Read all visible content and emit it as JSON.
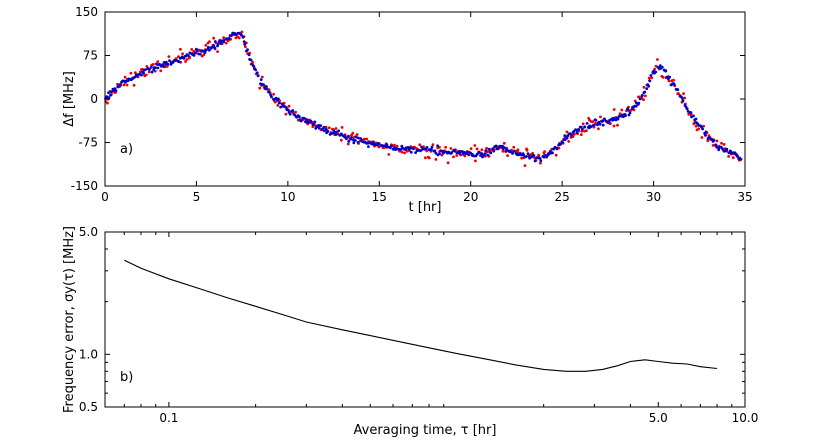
{
  "figure": {
    "background": "#ffffff",
    "frame_color": "#000000"
  },
  "chart_data": [
    {
      "type": "scatter",
      "panel_label": "a)",
      "xlabel": "t [hr]",
      "ylabel": "Δf [MHz]",
      "xscale": "linear",
      "yscale": "linear",
      "xlim": [
        0,
        35
      ],
      "ylim": [
        -150,
        150
      ],
      "xticks": {
        "values": [
          0,
          5,
          10,
          15,
          20,
          25,
          30,
          35
        ],
        "labels": [
          "0",
          "5",
          "10",
          "15",
          "20",
          "25",
          "30",
          "35"
        ]
      },
      "yticks": {
        "values": [
          -150,
          -75,
          0,
          75,
          150
        ],
        "labels": [
          "-150",
          "-75",
          "0",
          "75",
          "150"
        ]
      },
      "grid": false,
      "curve": {
        "t": [
          0,
          0.3,
          0.8,
          1.5,
          2,
          2.5,
          3,
          3.5,
          4,
          4.5,
          5,
          5.5,
          6,
          6.5,
          7,
          7.2,
          7.5,
          8,
          8.5,
          9,
          9.5,
          10,
          10.5,
          11,
          12,
          13,
          14,
          15,
          16,
          17,
          18,
          19,
          20,
          20.6,
          21.2,
          21.6,
          22,
          22.5,
          23,
          23.5,
          23.8,
          24.2,
          24.6,
          25,
          25.5,
          26,
          26.5,
          27,
          27.5,
          28,
          28.4,
          28.8,
          29.2,
          29.6,
          30,
          30.3,
          30.6,
          31,
          31.5,
          32,
          32.5,
          33,
          33.5,
          34,
          34.4,
          34.8
        ],
        "dfreq": [
          0,
          10,
          25,
          38,
          45,
          52,
          57,
          63,
          68,
          74,
          80,
          84,
          92,
          102,
          110,
          115,
          108,
          62,
          32,
          10,
          -6,
          -18,
          -28,
          -38,
          -52,
          -63,
          -72,
          -79,
          -84,
          -87,
          -89,
          -91,
          -95,
          -96,
          -88,
          -84,
          -88,
          -93,
          -97,
          -101,
          -104,
          -97,
          -86,
          -72,
          -61,
          -51,
          -45,
          -41,
          -38,
          -34,
          -29,
          -20,
          -6,
          18,
          48,
          55,
          47,
          28,
          4,
          -25,
          -46,
          -65,
          -80,
          -90,
          -97,
          -102
        ]
      },
      "series": [
        {
          "name": "red measurement points",
          "color": "#ee0000",
          "marker": "dot",
          "sigma": 6,
          "n": 430,
          "seed": 11,
          "radius": 1.4
        },
        {
          "name": "blue measurement points",
          "color": "#0000cd",
          "marker": "dot",
          "sigma": 2.6,
          "n": 520,
          "seed": 77,
          "radius": 1.4
        }
      ]
    },
    {
      "type": "line",
      "panel_label": "b)",
      "xlabel": "Averaging time, τ [hr]",
      "ylabel": "Frequency error, σy(τ) [MHz]",
      "xscale": "log",
      "yscale": "log",
      "xlim": [
        0.06,
        10
      ],
      "ylim": [
        0.5,
        5
      ],
      "xticks": {
        "values": [
          0.1,
          5,
          10
        ],
        "labels": [
          "0.1",
          "5.0",
          "10.0"
        ]
      },
      "yticks": {
        "values": [
          0.5,
          1,
          5
        ],
        "labels": [
          "0.5",
          "1.0",
          "5.0"
        ]
      },
      "grid": false,
      "line_color": "#000000",
      "x": [
        0.07,
        0.08,
        0.1,
        0.13,
        0.16,
        0.2,
        0.25,
        0.3,
        0.4,
        0.5,
        0.65,
        0.8,
        1.0,
        1.3,
        1.6,
        2.0,
        2.4,
        2.8,
        3.2,
        3.6,
        4.0,
        4.5,
        5.0,
        5.6,
        6.3,
        7.0,
        8.0
      ],
      "y": [
        3.45,
        3.1,
        2.7,
        2.35,
        2.1,
        1.88,
        1.68,
        1.53,
        1.38,
        1.28,
        1.17,
        1.09,
        1.01,
        0.93,
        0.87,
        0.82,
        0.8,
        0.8,
        0.82,
        0.86,
        0.91,
        0.93,
        0.91,
        0.89,
        0.88,
        0.85,
        0.83
      ]
    }
  ]
}
